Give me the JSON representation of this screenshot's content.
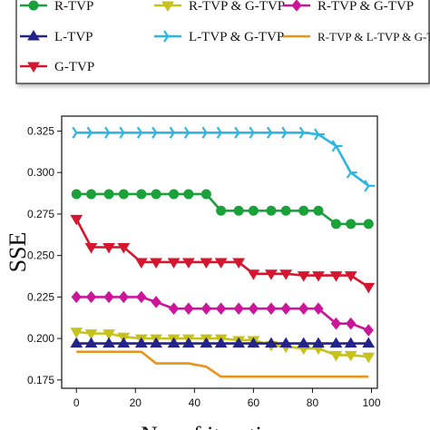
{
  "chart_data": {
    "type": "line",
    "xlabel": "No. of iterations",
    "ylabel": "SSE",
    "xlim": [
      -5,
      102
    ],
    "ylim": [
      0.17,
      0.334
    ],
    "x_ticks": [
      0,
      20,
      40,
      60,
      80,
      100
    ],
    "y_ticks": [
      "0.175",
      "0.200",
      "0.225",
      "0.250",
      "0.275",
      "0.300",
      "0.325"
    ],
    "legend_position": "top",
    "series": [
      {
        "name": "R-TVP",
        "color": "#1aa13a",
        "marker": "circle",
        "x": [
          0,
          5,
          11,
          16,
          22,
          27,
          33,
          38,
          44,
          49,
          55,
          60,
          66,
          71,
          77,
          82,
          88,
          93,
          99
        ],
        "y": [
          0.287,
          0.287,
          0.287,
          0.287,
          0.287,
          0.287,
          0.287,
          0.287,
          0.287,
          0.277,
          0.277,
          0.277,
          0.277,
          0.277,
          0.277,
          0.277,
          0.269,
          0.269,
          0.269
        ]
      },
      {
        "name": "R-TVP & G-TVP",
        "color": "#c6c21a",
        "marker": "triangle-down",
        "x": [
          0,
          5,
          11,
          16,
          22,
          27,
          33,
          38,
          44,
          49,
          55,
          60,
          66,
          71,
          77,
          82,
          88,
          93,
          99
        ],
        "y": [
          0.204,
          0.203,
          0.203,
          0.201,
          0.2,
          0.2,
          0.2,
          0.2,
          0.2,
          0.2,
          0.199,
          0.199,
          0.196,
          0.195,
          0.194,
          0.194,
          0.19,
          0.19,
          0.189
        ]
      },
      {
        "name": "R-TVP & G-TVP",
        "color": "#cc1699",
        "marker": "diamond",
        "x": [
          0,
          5,
          11,
          16,
          22,
          27,
          33,
          38,
          44,
          49,
          55,
          60,
          66,
          71,
          77,
          82,
          88,
          93,
          99
        ],
        "y": [
          0.225,
          0.225,
          0.225,
          0.225,
          0.225,
          0.222,
          0.218,
          0.218,
          0.218,
          0.218,
          0.218,
          0.218,
          0.218,
          0.218,
          0.218,
          0.218,
          0.209,
          0.209,
          0.205
        ]
      },
      {
        "name": "L-TVP",
        "color": "#23238a",
        "marker": "triangle-up",
        "x": [
          0,
          5,
          11,
          16,
          22,
          27,
          33,
          38,
          44,
          49,
          55,
          60,
          66,
          71,
          77,
          82,
          88,
          93,
          99
        ],
        "y": [
          0.197,
          0.197,
          0.197,
          0.197,
          0.197,
          0.197,
          0.197,
          0.197,
          0.197,
          0.197,
          0.197,
          0.197,
          0.197,
          0.197,
          0.197,
          0.197,
          0.197,
          0.197,
          0.197
        ]
      },
      {
        "name": "L-TVP & G-TVP",
        "color": "#2fb6e0",
        "marker": "tri-right",
        "x": [
          0,
          5,
          11,
          16,
          22,
          27,
          33,
          38,
          44,
          49,
          55,
          60,
          66,
          71,
          77,
          82,
          88,
          93,
          99
        ],
        "y": [
          0.324,
          0.324,
          0.324,
          0.324,
          0.324,
          0.324,
          0.324,
          0.324,
          0.324,
          0.324,
          0.324,
          0.324,
          0.324,
          0.324,
          0.324,
          0.323,
          0.316,
          0.3,
          0.292
        ]
      },
      {
        "name": "R-TVP & L-TVP & G-TVP",
        "color": "#e8941a",
        "marker": "none",
        "x": [
          0,
          5,
          11,
          16,
          22,
          27,
          33,
          38,
          44,
          49,
          55,
          60,
          66,
          71,
          77,
          82,
          88,
          93,
          99
        ],
        "y": [
          0.192,
          0.192,
          0.192,
          0.192,
          0.192,
          0.185,
          0.185,
          0.185,
          0.183,
          0.177,
          0.177,
          0.177,
          0.177,
          0.177,
          0.177,
          0.177,
          0.177,
          0.177,
          0.177
        ]
      },
      {
        "name": "G-TVP",
        "color": "#d6162e",
        "marker": "triangle-down",
        "x": [
          0,
          5,
          11,
          16,
          22,
          27,
          33,
          38,
          44,
          49,
          55,
          60,
          66,
          71,
          77,
          82,
          88,
          93,
          99
        ],
        "y": [
          0.272,
          0.255,
          0.255,
          0.255,
          0.246,
          0.246,
          0.246,
          0.246,
          0.246,
          0.246,
          0.246,
          0.239,
          0.239,
          0.239,
          0.238,
          0.238,
          0.238,
          0.238,
          0.231
        ]
      }
    ]
  }
}
